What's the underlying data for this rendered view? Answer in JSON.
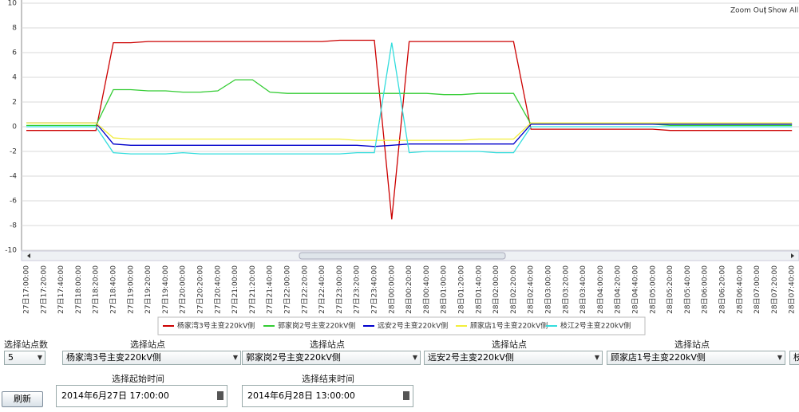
{
  "chart_data": {
    "type": "line",
    "categories": [
      "27日17:00:00",
      "27日17:20:00",
      "27日17:40:00",
      "27日18:00:00",
      "27日18:20:00",
      "27日18:40:00",
      "27日19:00:00",
      "27日19:20:00",
      "27日19:40:00",
      "27日20:00:00",
      "27日20:20:00",
      "27日20:40:00",
      "27日21:00:00",
      "27日21:20:00",
      "27日21:40:00",
      "27日22:00:00",
      "27日22:20:00",
      "27日22:40:00",
      "27日23:00:00",
      "27日23:20:00",
      "27日23:40:00",
      "28日00:00:00",
      "28日00:20:00",
      "28日00:40:00",
      "28日01:00:00",
      "28日01:20:00",
      "28日01:40:00",
      "28日02:00:00",
      "28日02:20:00",
      "28日02:40:00",
      "28日03:00:00",
      "28日03:20:00",
      "28日03:40:00",
      "28日04:00:00",
      "28日04:20:00",
      "28日04:40:00",
      "28日05:00:00",
      "28日05:20:00",
      "28日05:40:00",
      "28日06:00:00",
      "28日06:20:00",
      "28日06:40:00",
      "28日07:00:00",
      "28日07:20:00",
      "28日07:40:00"
    ],
    "series": [
      {
        "name": "杨家湾3号主变220kV侧",
        "color": "#cc0000",
        "values": [
          -0.3,
          -0.3,
          -0.3,
          -0.3,
          -0.3,
          6.8,
          6.8,
          6.9,
          6.9,
          6.9,
          6.9,
          6.9,
          6.9,
          6.9,
          6.9,
          6.9,
          6.9,
          6.9,
          7.0,
          7.0,
          7.0,
          -7.5,
          6.9,
          6.9,
          6.9,
          6.9,
          6.9,
          6.9,
          6.9,
          -0.2,
          -0.2,
          -0.2,
          -0.2,
          -0.2,
          -0.2,
          -0.2,
          -0.2,
          -0.3,
          -0.3,
          -0.3,
          -0.3,
          -0.3,
          -0.3,
          -0.3,
          -0.3
        ]
      },
      {
        "name": "郭家岗2号主变220kV侧",
        "color": "#33cc33",
        "values": [
          0.1,
          0.1,
          0.1,
          0.1,
          0.1,
          3.0,
          3.0,
          2.9,
          2.9,
          2.8,
          2.8,
          2.9,
          3.8,
          3.8,
          2.8,
          2.7,
          2.7,
          2.7,
          2.7,
          2.7,
          2.7,
          2.7,
          2.7,
          2.7,
          2.6,
          2.6,
          2.7,
          2.7,
          2.7,
          0.2,
          0.2,
          0.2,
          0.2,
          0.2,
          0.2,
          0.2,
          0.2,
          0.1,
          0.1,
          0.1,
          0.1,
          0.1,
          0.1,
          0.1,
          0.1
        ]
      },
      {
        "name": "远安2号主变220kV侧",
        "color": "#0000cc",
        "values": [
          0.3,
          0.3,
          0.3,
          0.3,
          0.3,
          -1.4,
          -1.5,
          -1.5,
          -1.5,
          -1.5,
          -1.5,
          -1.5,
          -1.5,
          -1.5,
          -1.5,
          -1.5,
          -1.5,
          -1.5,
          -1.5,
          -1.5,
          -1.6,
          -1.5,
          -1.4,
          -1.4,
          -1.4,
          -1.4,
          -1.4,
          -1.4,
          -1.4,
          0.2,
          0.2,
          0.2,
          0.2,
          0.2,
          0.2,
          0.2,
          0.2,
          0.2,
          0.2,
          0.2,
          0.2,
          0.2,
          0.2,
          0.2,
          0.2
        ]
      },
      {
        "name": "顾家店1号主变220kV侧",
        "color": "#f2ee3a",
        "values": [
          0.3,
          0.3,
          0.3,
          0.3,
          0.3,
          -0.9,
          -1.0,
          -1.0,
          -1.0,
          -1.0,
          -1.0,
          -1.0,
          -1.0,
          -1.0,
          -1.0,
          -1.0,
          -1.0,
          -1.0,
          -1.0,
          -1.1,
          -1.1,
          -1.1,
          -1.1,
          -1.1,
          -1.1,
          -1.1,
          -1.0,
          -1.0,
          -1.0,
          0.3,
          0.3,
          0.3,
          0.3,
          0.3,
          0.3,
          0.3,
          0.3,
          0.3,
          0.3,
          0.3,
          0.3,
          0.3,
          0.3,
          0.3,
          0.3
        ]
      },
      {
        "name": "枝江2号主变220kV侧",
        "color": "#33dddd",
        "values": [
          0.0,
          0.0,
          0.0,
          0.0,
          0.0,
          -2.1,
          -2.2,
          -2.2,
          -2.2,
          -2.1,
          -2.2,
          -2.2,
          -2.2,
          -2.2,
          -2.2,
          -2.2,
          -2.2,
          -2.2,
          -2.2,
          -2.1,
          -2.1,
          6.8,
          -2.1,
          -2.0,
          -2.0,
          -2.0,
          -2.0,
          -2.1,
          -2.1,
          0.0,
          0.0,
          0.0,
          0.0,
          0.0,
          0.0,
          0.0,
          0.0,
          0.0,
          0.0,
          0.0,
          0.0,
          0.0,
          0.0,
          0.0,
          0.0
        ]
      }
    ],
    "ylim": [
      -10,
      10
    ],
    "yticks": [
      -10,
      -8,
      -6,
      -4,
      -2,
      0,
      2,
      4,
      6,
      8,
      10
    ],
    "grid": true,
    "legend": "bottom"
  },
  "toolbar": {
    "zoom_out": "Zoom Out",
    "separator": "|",
    "show_all": "Show All"
  },
  "controls": {
    "station_count_label": "选择站点数",
    "station_count": "5",
    "station_label": "选择站点",
    "stations": [
      "杨家湾3号主变220kV侧",
      "郭家岗2号主变220kV侧",
      "远安2号主变220kV侧",
      "顾家店1号主变220kV侧",
      "枝江2号主变220kV侧"
    ],
    "start_label": "选择起始时间",
    "start_time": "2014年6月27日 17:00:00",
    "end_label": "选择结束时间",
    "end_time": "2014年6月28日 13:00:00",
    "refresh": "刷新"
  }
}
